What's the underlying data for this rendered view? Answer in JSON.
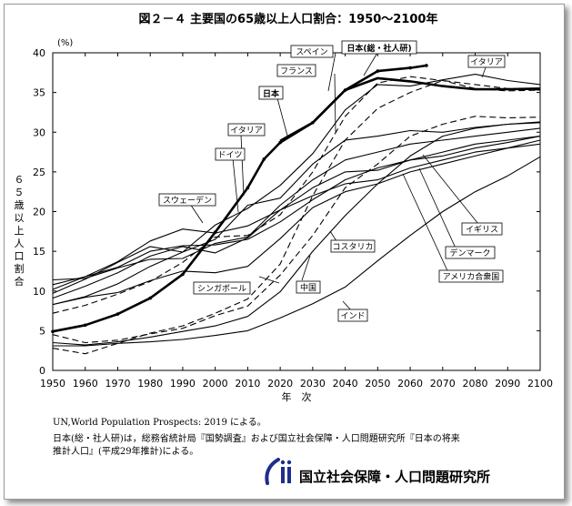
{
  "chart_data": {
    "type": "line",
    "title": "図２－４ 主要国の65歳以上人口割合：1950～2100年",
    "ylabel": "６５歳以上人口割合",
    "yunit": "(%)",
    "xlabel": "年　次",
    "xlim": [
      1950,
      2100
    ],
    "ylim": [
      0,
      40
    ],
    "xticks": [
      "1950",
      "1960",
      "1970",
      "1980",
      "1990",
      "2000",
      "2010",
      "2020",
      "2030",
      "2040",
      "2050",
      "2060",
      "2070",
      "2080",
      "2090",
      "2100"
    ],
    "yticks": [
      "0",
      "5",
      "10",
      "15",
      "20",
      "25",
      "30",
      "35",
      "40"
    ],
    "grid": false,
    "legend": "inline labels",
    "series": [
      {
        "name": "日本",
        "style": "bold-dots",
        "points": [
          [
            1950,
            4.9
          ],
          [
            1960,
            5.7
          ],
          [
            1970,
            7.1
          ],
          [
            1980,
            9.1
          ],
          [
            1990,
            12.1
          ],
          [
            2000,
            17.4
          ],
          [
            2010,
            23.0
          ],
          [
            2015,
            26.6
          ],
          [
            2020,
            28.7
          ],
          [
            2030,
            31.2
          ],
          [
            2040,
            35.3
          ],
          [
            2050,
            37.7
          ],
          [
            2060,
            38.1
          ],
          [
            2065,
            38.4
          ]
        ]
      },
      {
        "name": "日本（総・社人研）",
        "style": "bold",
        "points": [
          [
            2020,
            28.9
          ],
          [
            2030,
            31.2
          ],
          [
            2040,
            35.3
          ],
          [
            2050,
            36.8
          ],
          [
            2060,
            36.4
          ],
          [
            2070,
            35.8
          ],
          [
            2080,
            35.4
          ],
          [
            2090,
            35.4
          ],
          [
            2100,
            35.5
          ]
        ]
      },
      {
        "name": "イタリア",
        "style": "solid",
        "points": [
          [
            1950,
            8.3
          ],
          [
            1960,
            9.3
          ],
          [
            1970,
            10.9
          ],
          [
            1980,
            13.1
          ],
          [
            1990,
            14.9
          ],
          [
            2000,
            18.3
          ],
          [
            2010,
            20.4
          ],
          [
            2020,
            23.3
          ],
          [
            2030,
            27.3
          ],
          [
            2040,
            32.8
          ],
          [
            2050,
            36.0
          ],
          [
            2060,
            35.8
          ],
          [
            2070,
            36.6
          ],
          [
            2080,
            37.3
          ],
          [
            2090,
            36.5
          ],
          [
            2100,
            36.0
          ]
        ]
      },
      {
        "name": "スペイン",
        "style": "dash",
        "points": [
          [
            1950,
            7.2
          ],
          [
            1960,
            8.2
          ],
          [
            1970,
            9.6
          ],
          [
            1980,
            11.2
          ],
          [
            1990,
            13.6
          ],
          [
            2000,
            16.8
          ],
          [
            2010,
            17.0
          ],
          [
            2020,
            19.6
          ],
          [
            2030,
            25.0
          ],
          [
            2040,
            32.0
          ],
          [
            2050,
            36.2
          ],
          [
            2060,
            37.0
          ],
          [
            2070,
            36.5
          ],
          [
            2080,
            35.5
          ],
          [
            2090,
            35.2
          ],
          [
            2100,
            35.3
          ]
        ]
      },
      {
        "name": "中国",
        "style": "dash",
        "points": [
          [
            1950,
            4.5
          ],
          [
            1960,
            3.5
          ],
          [
            1970,
            3.8
          ],
          [
            1980,
            4.6
          ],
          [
            1990,
            5.3
          ],
          [
            2000,
            6.9
          ],
          [
            2010,
            8.1
          ],
          [
            2020,
            12.0
          ],
          [
            2030,
            17.0
          ],
          [
            2040,
            23.0
          ],
          [
            2050,
            26.0
          ],
          [
            2060,
            29.5
          ],
          [
            2070,
            31.0
          ],
          [
            2080,
            32.0
          ],
          [
            2090,
            31.8
          ],
          [
            2100,
            31.9
          ]
        ]
      },
      {
        "name": "フランス",
        "style": "solid",
        "points": [
          [
            1950,
            11.4
          ],
          [
            1960,
            11.6
          ],
          [
            1970,
            12.9
          ],
          [
            1980,
            14.0
          ],
          [
            1990,
            14.1
          ],
          [
            2000,
            16.0
          ],
          [
            2010,
            16.8
          ],
          [
            2020,
            20.8
          ],
          [
            2030,
            24.0
          ],
          [
            2040,
            26.5
          ],
          [
            2050,
            27.5
          ],
          [
            2060,
            28.5
          ],
          [
            2070,
            29.0
          ],
          [
            2080,
            29.5
          ],
          [
            2090,
            30.0
          ],
          [
            2100,
            30.5
          ]
        ]
      },
      {
        "name": "ドイツ",
        "style": "solid",
        "points": [
          [
            1950,
            9.7
          ],
          [
            1960,
            11.5
          ],
          [
            1970,
            13.6
          ],
          [
            1980,
            15.6
          ],
          [
            1990,
            14.9
          ],
          [
            2000,
            16.5
          ],
          [
            2010,
            20.8
          ],
          [
            2020,
            21.7
          ],
          [
            2030,
            26.0
          ],
          [
            2040,
            29.0
          ],
          [
            2050,
            29.5
          ],
          [
            2060,
            30.2
          ],
          [
            2070,
            30.0
          ],
          [
            2080,
            30.6
          ],
          [
            2090,
            31.0
          ],
          [
            2100,
            31.3
          ]
        ]
      },
      {
        "name": "スウェーデン",
        "style": "solid",
        "points": [
          [
            1950,
            10.2
          ],
          [
            1960,
            11.8
          ],
          [
            1970,
            13.7
          ],
          [
            1980,
            16.3
          ],
          [
            1990,
            17.8
          ],
          [
            2000,
            17.3
          ],
          [
            2010,
            18.2
          ],
          [
            2020,
            20.2
          ],
          [
            2030,
            22.0
          ],
          [
            2040,
            23.5
          ],
          [
            2050,
            24.0
          ],
          [
            2060,
            25.5
          ],
          [
            2070,
            26.5
          ],
          [
            2080,
            27.5
          ],
          [
            2090,
            28.0
          ],
          [
            2100,
            28.5
          ]
        ]
      },
      {
        "name": "イギリス",
        "style": "solid",
        "points": [
          [
            1950,
            10.8
          ],
          [
            1960,
            11.8
          ],
          [
            1970,
            13.0
          ],
          [
            1980,
            15.0
          ],
          [
            1990,
            15.7
          ],
          [
            2000,
            15.8
          ],
          [
            2010,
            16.5
          ],
          [
            2020,
            18.7
          ],
          [
            2030,
            21.5
          ],
          [
            2040,
            24.0
          ],
          [
            2050,
            25.5
          ],
          [
            2060,
            26.5
          ],
          [
            2070,
            27.5
          ],
          [
            2080,
            28.5
          ],
          [
            2090,
            29.0
          ],
          [
            2100,
            29.5
          ]
        ]
      },
      {
        "name": "デンマーク",
        "style": "solid",
        "points": [
          [
            1950,
            9.1
          ],
          [
            1960,
            10.6
          ],
          [
            1970,
            12.3
          ],
          [
            1980,
            14.4
          ],
          [
            1990,
            15.6
          ],
          [
            2000,
            14.8
          ],
          [
            2010,
            16.7
          ],
          [
            2020,
            20.2
          ],
          [
            2030,
            23.0
          ],
          [
            2040,
            25.0
          ],
          [
            2050,
            25.2
          ],
          [
            2060,
            26.5
          ],
          [
            2070,
            27.0
          ],
          [
            2080,
            28.0
          ],
          [
            2090,
            28.7
          ],
          [
            2100,
            29.5
          ]
        ]
      },
      {
        "name": "アメリカ合衆国",
        "style": "solid",
        "points": [
          [
            1950,
            8.3
          ],
          [
            1960,
            9.2
          ],
          [
            1970,
            9.8
          ],
          [
            1980,
            11.3
          ],
          [
            1990,
            12.5
          ],
          [
            2000,
            12.3
          ],
          [
            2010,
            13.1
          ],
          [
            2020,
            16.6
          ],
          [
            2030,
            20.5
          ],
          [
            2040,
            22.5
          ],
          [
            2050,
            23.5
          ],
          [
            2060,
            25.0
          ],
          [
            2070,
            26.0
          ],
          [
            2080,
            27.0
          ],
          [
            2090,
            28.0
          ],
          [
            2100,
            29.0
          ]
        ]
      },
      {
        "name": "シンガポール",
        "style": "dash",
        "points": [
          [
            1950,
            2.8
          ],
          [
            1960,
            2.1
          ],
          [
            1970,
            3.4
          ],
          [
            1980,
            4.7
          ],
          [
            1990,
            5.6
          ],
          [
            2000,
            7.2
          ],
          [
            2010,
            9.0
          ],
          [
            2020,
            13.4
          ],
          [
            2030,
            22.0
          ],
          [
            2040,
            29.0
          ],
          [
            2050,
            33.0
          ],
          [
            2060,
            35.0
          ],
          [
            2070,
            36.5
          ],
          [
            2080,
            36.0
          ],
          [
            2090,
            35.5
          ],
          [
            2100,
            35.3
          ]
        ]
      },
      {
        "name": "コスタリカ",
        "style": "solid",
        "points": [
          [
            1950,
            3.5
          ],
          [
            1960,
            3.2
          ],
          [
            1970,
            3.6
          ],
          [
            1980,
            4.2
          ],
          [
            1990,
            4.9
          ],
          [
            2000,
            5.6
          ],
          [
            2010,
            6.8
          ],
          [
            2020,
            9.9
          ],
          [
            2030,
            15.0
          ],
          [
            2040,
            19.5
          ],
          [
            2050,
            23.5
          ],
          [
            2060,
            27.0
          ],
          [
            2070,
            29.5
          ],
          [
            2080,
            30.5
          ],
          [
            2090,
            31.0
          ],
          [
            2100,
            31.2
          ]
        ]
      },
      {
        "name": "インド",
        "style": "solid",
        "points": [
          [
            1950,
            3.1
          ],
          [
            1960,
            3.1
          ],
          [
            1970,
            3.4
          ],
          [
            1980,
            3.6
          ],
          [
            1990,
            3.9
          ],
          [
            2000,
            4.4
          ],
          [
            2010,
            5.0
          ],
          [
            2020,
            6.6
          ],
          [
            2030,
            8.4
          ],
          [
            2040,
            10.5
          ],
          [
            2050,
            13.8
          ],
          [
            2060,
            17.0
          ],
          [
            2070,
            20.0
          ],
          [
            2080,
            22.5
          ],
          [
            2090,
            24.5
          ],
          [
            2100,
            26.9
          ]
        ]
      }
    ]
  },
  "labels": {
    "spain": "スペイン",
    "japan_proj": "日本(総・社人研)",
    "france": "フランス",
    "japan": "日本",
    "italy_a": "イタリア",
    "italy_b": "イタリア",
    "germany": "ドイツ",
    "sweden": "スウェーデン",
    "uk": "イギリス",
    "denmark": "デンマーク",
    "usa": "アメリカ合衆国",
    "costarica": "コスタリカ",
    "singapore": "シンガポール",
    "china": "中国",
    "india": "インド"
  },
  "notes": {
    "line1": "UN,World Population Prospects: 2019 による。",
    "line2": "日本(総・社人研)は，総務省統計局『国勢調査』および国立社会保障・人口問題研究所『日本の将来",
    "line3": "推計人口』(平成29年推計)による。"
  },
  "footer": {
    "org_name": "国立社会保障・人口問題研究所"
  }
}
